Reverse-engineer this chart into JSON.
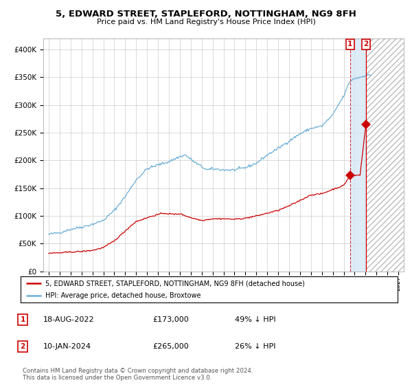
{
  "title": "5, EDWARD STREET, STAPLEFORD, NOTTINGHAM, NG9 8FH",
  "subtitle": "Price paid vs. HM Land Registry's House Price Index (HPI)",
  "legend_line1": "5, EDWARD STREET, STAPLEFORD, NOTTINGHAM, NG9 8FH (detached house)",
  "legend_line2": "HPI: Average price, detached house, Broxtowe",
  "transaction1_label": "18-AUG-2022",
  "transaction1_price": "£173,000",
  "transaction1_hpi": "49% ↓ HPI",
  "transaction1_year": 2022.583,
  "transaction1_value": 173000,
  "transaction2_label": "10-JAN-2024",
  "transaction2_price": "£265,000",
  "transaction2_hpi": "26% ↓ HPI",
  "transaction2_year": 2024.033,
  "transaction2_value": 265000,
  "footer": "Contains HM Land Registry data © Crown copyright and database right 2024.\nThis data is licensed under the Open Government Licence v3.0.",
  "hpi_color": "#6baed6",
  "price_color": "#cc0000",
  "background_color": "#ffffff",
  "grid_color": "#cccccc",
  "ylim": [
    0,
    420000
  ],
  "yticks": [
    0,
    50000,
    100000,
    150000,
    200000,
    250000,
    300000,
    350000,
    400000
  ],
  "x_start_year": 1995,
  "x_end_year": 2027,
  "hpi_anchors_x": [
    1995.0,
    1996.0,
    1997.0,
    1998.0,
    1999.0,
    2000.0,
    2001.0,
    2002.0,
    2003.0,
    2004.0,
    2005.0,
    2006.0,
    2007.0,
    2007.5,
    2008.5,
    2009.5,
    2010.0,
    2011.0,
    2012.0,
    2013.0,
    2014.0,
    2015.0,
    2016.0,
    2017.0,
    2018.0,
    2019.0,
    2020.0,
    2021.0,
    2021.5,
    2022.0,
    2022.5,
    2022.583,
    2023.0,
    2023.5,
    2024.033,
    2024.5
  ],
  "hpi_anchors_y": [
    67000,
    70000,
    76000,
    80000,
    85000,
    92000,
    110000,
    135000,
    165000,
    185000,
    192000,
    198000,
    207000,
    210000,
    195000,
    183000,
    185000,
    183000,
    183000,
    187000,
    195000,
    210000,
    222000,
    235000,
    248000,
    258000,
    262000,
    282000,
    300000,
    316000,
    340000,
    343000,
    348000,
    350000,
    354000,
    353000
  ],
  "price_anchors_x": [
    1995.0,
    1996.0,
    1997.0,
    1998.0,
    1999.0,
    2000.0,
    2001.0,
    2002.0,
    2002.5,
    2003.0,
    2004.5,
    2005.5,
    2006.5,
    2007.0,
    2008.0,
    2009.0,
    2010.0,
    2011.0,
    2012.0,
    2013.0,
    2014.0,
    2015.0,
    2016.0,
    2017.0,
    2018.0,
    2019.0,
    2020.0,
    2021.0,
    2022.0,
    2022.583,
    2023.0,
    2023.5,
    2024.033
  ],
  "price_anchors_y": [
    33000,
    33500,
    35000,
    36000,
    38000,
    43000,
    55000,
    73000,
    82000,
    90000,
    100000,
    105000,
    103000,
    104000,
    97000,
    92000,
    95000,
    95000,
    94000,
    96000,
    100000,
    105000,
    110000,
    118000,
    128000,
    138000,
    140000,
    148000,
    155000,
    173000,
    173000,
    174000,
    265000
  ]
}
